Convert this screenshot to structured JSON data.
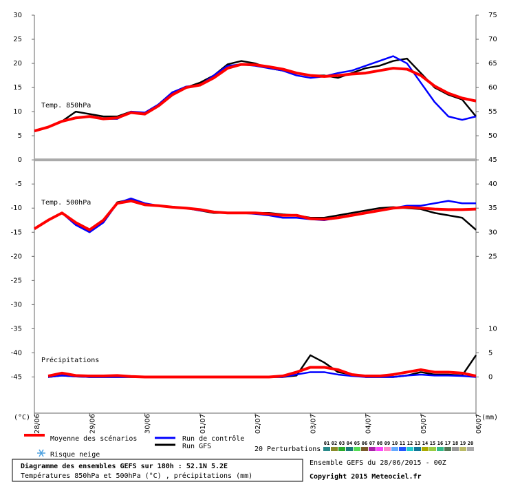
{
  "chart_data": {
    "type": "line",
    "title": "Diagramme des ensembles GEFS sur 180h : 52.1N 5.2E",
    "subtitle": "Températures 850hPa et 500hPa (°C) , précipitations (mm)",
    "run_info": "Ensemble GEFS du 28/06/2015 - 00Z",
    "copyright": "Copyright 2015 Meteociel.fr",
    "y_unit": "(°C)",
    "y2_unit": "(mm)",
    "panel_labels": [
      "Temp. 850hPa",
      "Temp. 500hPa",
      "Précipitations"
    ],
    "snow_label": "Risque neige",
    "x": [
      0,
      6,
      12,
      18,
      24,
      30,
      36,
      42,
      48,
      54,
      60,
      66,
      72,
      78,
      84,
      90,
      96,
      102,
      108,
      114,
      120,
      126,
      132,
      138,
      144,
      150,
      156,
      162,
      168,
      174,
      180,
      186,
      192
    ],
    "xlim": [
      0,
      192
    ],
    "xticks": [
      {
        "value": 0,
        "label": "28/06"
      },
      {
        "value": 24,
        "label": "29/06"
      },
      {
        "value": 48,
        "label": "30/06"
      },
      {
        "value": 72,
        "label": "01/07"
      },
      {
        "value": 96,
        "label": "02/07"
      },
      {
        "value": 120,
        "label": "03/07"
      },
      {
        "value": 144,
        "label": "04/07"
      },
      {
        "value": 168,
        "label": "05/07"
      },
      {
        "value": 192,
        "label": "06/07"
      }
    ],
    "ylim": [
      -52.5,
      30
    ],
    "yticks": [
      30,
      25,
      20,
      15,
      10,
      5,
      0,
      -5,
      -10,
      -15,
      -20,
      -25,
      -30,
      -35,
      -40,
      -45
    ],
    "y2lim": [
      -7.5,
      75
    ],
    "y2ticks": [
      75,
      70,
      65,
      60,
      55,
      50,
      45,
      40,
      35,
      30,
      25,
      10,
      5,
      0
    ],
    "series": [
      {
        "name": "Moyenne des scénarios",
        "color": "#ff0000",
        "values_850": [
          6,
          6.8,
          8,
          8.7,
          9,
          8.5,
          8.7,
          9.8,
          9.5,
          11.2,
          13.5,
          15,
          15.5,
          17,
          19,
          19.8,
          19.7,
          19.3,
          18.8,
          18,
          17.5,
          17.3,
          17.5,
          17.8,
          18,
          18.5,
          19,
          18.8,
          17.5,
          15.3,
          13.8,
          12.8,
          12.2
        ],
        "values_500": [
          -14.3,
          -12.5,
          -11,
          -13,
          -14.5,
          -12.5,
          -9,
          -8.5,
          -9.3,
          -9.5,
          -9.8,
          -10,
          -10.3,
          -10.8,
          -11,
          -11,
          -11,
          -11.2,
          -11.5,
          -11.5,
          -12.2,
          -12.3,
          -12,
          -11.5,
          -11,
          -10.5,
          -10,
          -9.8,
          -10,
          -10.2,
          -10.3,
          -10.3,
          -10.2
        ],
        "values_precip": [
          null,
          0.2,
          0.8,
          0.3,
          0.2,
          0.2,
          0.3,
          0.1,
          0,
          0,
          0,
          0,
          0,
          0,
          0,
          0,
          0,
          0,
          0.2,
          1,
          2,
          2,
          1.5,
          0.5,
          0.2,
          0.2,
          0.5,
          1,
          1.5,
          1,
          1,
          0.8,
          0.2
        ]
      },
      {
        "name": "Run de contrôle",
        "color": "#0000ff",
        "values_850": [
          6,
          6.8,
          8,
          8.8,
          9,
          8.5,
          8.5,
          10,
          9.8,
          11.5,
          14,
          15.2,
          15.5,
          17.5,
          19.5,
          19.8,
          19.5,
          19,
          18.5,
          17.5,
          17,
          17.3,
          18,
          18.5,
          19.5,
          20.5,
          21.5,
          20,
          16,
          12,
          9,
          8.3,
          9
        ],
        "values_500": [
          -14.3,
          -12.5,
          -11,
          -13.5,
          -15,
          -13,
          -9,
          -8,
          -9,
          -9.5,
          -9.8,
          -10,
          -10.5,
          -10.8,
          -11,
          -11,
          -11.2,
          -11.5,
          -12,
          -12,
          -12.3,
          -12.5,
          -12,
          -11.5,
          -11,
          -10.5,
          -10,
          -9.5,
          -9.5,
          -9,
          -8.5,
          -9,
          -9
        ],
        "values_precip": [
          null,
          0,
          0.3,
          0.1,
          0,
          0,
          0,
          0,
          0,
          0,
          0,
          0,
          0,
          0,
          0,
          0,
          0,
          0,
          0,
          0.5,
          1,
          1,
          0.5,
          0.2,
          0,
          0,
          0,
          0.3,
          0.5,
          0.3,
          0.3,
          0.2,
          0
        ]
      },
      {
        "name": "Run GFS",
        "color": "#000000",
        "values_850": [
          6,
          6.8,
          8,
          10,
          9.5,
          9,
          9,
          10,
          9.5,
          11.5,
          14,
          15,
          16,
          17.5,
          19.8,
          20.5,
          20,
          19,
          18.5,
          18,
          17.5,
          17.5,
          17,
          18,
          19,
          19.5,
          20.5,
          21,
          18,
          15,
          13.5,
          12.5,
          9
        ],
        "values_500": [
          -14.3,
          -12.5,
          -11,
          -13.2,
          -14.8,
          -12.8,
          -8.8,
          -8.2,
          -9.2,
          -9.5,
          -9.8,
          -10,
          -10.5,
          -11,
          -11,
          -11,
          -11,
          -11,
          -11.3,
          -11.5,
          -12,
          -12,
          -11.5,
          -11,
          -10.5,
          -10,
          -9.8,
          -10,
          -10.2,
          -11,
          -11.5,
          -12,
          -14.5
        ],
        "values_precip": [
          null,
          0,
          0.3,
          0.1,
          0,
          0,
          0,
          0,
          0,
          0,
          0,
          0,
          0,
          0,
          0,
          0,
          0,
          0,
          0,
          0.3,
          4.5,
          3,
          1,
          0.5,
          0,
          0,
          0,
          0.3,
          1,
          0.5,
          0.5,
          0.3,
          4.5
        ]
      }
    ],
    "perturbations": {
      "label": "20 Perturbations",
      "members": [
        {
          "name": "01",
          "color": "#2a8a8a"
        },
        {
          "name": "02",
          "color": "#8a8a2a"
        },
        {
          "name": "03",
          "color": "#2aaa2a"
        },
        {
          "name": "04",
          "color": "#1a7a7a"
        },
        {
          "name": "05",
          "color": "#55dd55"
        },
        {
          "name": "06",
          "color": "#7a5a2a"
        },
        {
          "name": "07",
          "color": "#aa22aa"
        },
        {
          "name": "08",
          "color": "#ff44ff"
        },
        {
          "name": "09",
          "color": "#ff88cc"
        },
        {
          "name": "10",
          "color": "#66aaff"
        },
        {
          "name": "11",
          "color": "#2255ff"
        },
        {
          "name": "12",
          "color": "#22cccc"
        },
        {
          "name": "13",
          "color": "#117799"
        },
        {
          "name": "14",
          "color": "#aaaa00"
        },
        {
          "name": "15",
          "color": "#99cc44"
        },
        {
          "name": "16",
          "color": "#33bb88"
        },
        {
          "name": "17",
          "color": "#557755"
        },
        {
          "name": "18",
          "color": "#999999"
        },
        {
          "name": "19",
          "color": "#bbbb66"
        },
        {
          "name": "20",
          "color": "#aaaaaa"
        }
      ]
    }
  }
}
